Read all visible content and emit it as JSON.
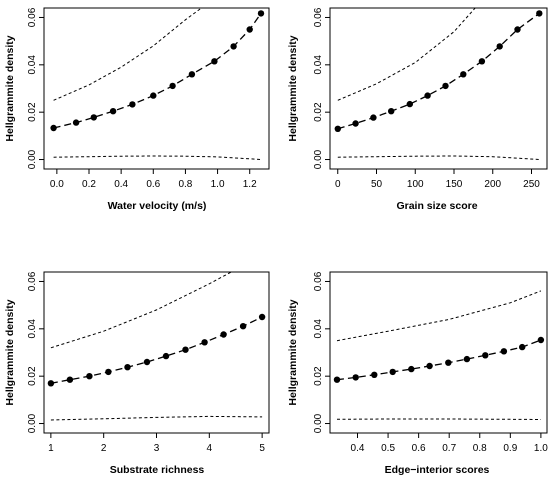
{
  "chart_data": [
    {
      "type": "line",
      "xlabel": "Water velocity (m/s)",
      "ylabel": "Hellgrammite density",
      "xlim": [
        -0.08,
        1.32
      ],
      "ylim": [
        -0.004,
        0.064
      ],
      "xticks": [
        0,
        0.2,
        0.4,
        0.6,
        0.8,
        1.0,
        1.2
      ],
      "xtick_labels": [
        "0.0",
        "0.2",
        "0.4",
        "0.6",
        "0.8",
        "1.0",
        "1.2"
      ],
      "yticks": [
        0,
        0.02,
        0.04,
        0.06
      ],
      "ytick_labels": [
        "0.00",
        "0.02",
        "0.04",
        "0.06"
      ],
      "grid": false,
      "series": [
        {
          "style": "fitted",
          "x": [
            -0.02,
            0.12,
            0.23,
            0.35,
            0.47,
            0.6,
            0.72,
            0.84,
            0.98,
            1.1,
            1.2,
            1.27
          ],
          "y": [
            0.0133,
            0.0156,
            0.0178,
            0.0204,
            0.0233,
            0.027,
            0.0311,
            0.036,
            0.0415,
            0.0478,
            0.0549,
            0.0617
          ]
        },
        {
          "style": "upper-bound",
          "x": [
            -0.02,
            0.2,
            0.4,
            0.6,
            0.8,
            0.92
          ],
          "y": [
            0.025,
            0.0315,
            0.039,
            0.048,
            0.059,
            0.065
          ]
        },
        {
          "style": "lower-bound",
          "x": [
            -0.02,
            0.2,
            0.4,
            0.6,
            0.8,
            1.0,
            1.27
          ],
          "y": [
            0.001,
            0.0012,
            0.0014,
            0.0015,
            0.0014,
            0.0011,
            0.0
          ]
        }
      ]
    },
    {
      "type": "line",
      "xlabel": "Grain size score",
      "ylabel": "Hellgrammite density",
      "xlim": [
        -10,
        270
      ],
      "ylim": [
        -0.004,
        0.064
      ],
      "xticks": [
        0,
        50,
        100,
        150,
        200,
        250
      ],
      "xtick_labels": [
        "0",
        "50",
        "100",
        "150",
        "200",
        "250"
      ],
      "yticks": [
        0,
        0.02,
        0.04,
        0.06
      ],
      "ytick_labels": [
        "0.00",
        "0.02",
        "0.04",
        "0.06"
      ],
      "grid": false,
      "series": [
        {
          "style": "fitted",
          "x": [
            0,
            23,
            46,
            69,
            93,
            116,
            139,
            162,
            186,
            209,
            232,
            260
          ],
          "y": [
            0.013,
            0.0152,
            0.0177,
            0.0204,
            0.0234,
            0.027,
            0.0311,
            0.036,
            0.0415,
            0.0478,
            0.0549,
            0.0617
          ]
        },
        {
          "style": "upper-bound",
          "x": [
            0,
            50,
            100,
            150,
            180
          ],
          "y": [
            0.025,
            0.032,
            0.041,
            0.054,
            0.065
          ]
        },
        {
          "style": "lower-bound",
          "x": [
            0,
            50,
            100,
            150,
            200,
            260
          ],
          "y": [
            0.001,
            0.0012,
            0.0014,
            0.0015,
            0.0012,
            0.0
          ]
        }
      ]
    },
    {
      "type": "line",
      "xlabel": "Substrate richness",
      "ylabel": "Hellgrammite density",
      "xlim": [
        0.87,
        5.13
      ],
      "ylim": [
        -0.004,
        0.064
      ],
      "xticks": [
        1,
        2,
        3,
        4,
        5
      ],
      "xtick_labels": [
        "1",
        "2",
        "3",
        "4",
        "5"
      ],
      "yticks": [
        0,
        0.02,
        0.04,
        0.06
      ],
      "ytick_labels": [
        "0.00",
        "0.02",
        "0.04",
        "0.06"
      ],
      "grid": false,
      "series": [
        {
          "style": "fitted",
          "x": [
            1,
            1.36,
            1.73,
            2.09,
            2.45,
            2.82,
            3.18,
            3.55,
            3.91,
            4.27,
            4.64,
            5
          ],
          "y": [
            0.017,
            0.0185,
            0.02,
            0.0218,
            0.0238,
            0.026,
            0.0285,
            0.0312,
            0.0343,
            0.0376,
            0.0411,
            0.045
          ]
        },
        {
          "style": "upper-bound",
          "x": [
            1,
            2,
            3,
            4,
            4.5
          ],
          "y": [
            0.032,
            0.039,
            0.048,
            0.059,
            0.065
          ]
        },
        {
          "style": "lower-bound",
          "x": [
            1,
            2,
            3,
            4,
            5
          ],
          "y": [
            0.0015,
            0.002,
            0.0026,
            0.003,
            0.0028
          ]
        }
      ]
    },
    {
      "type": "line",
      "xlabel": "Edge−interior scores",
      "ylabel": "Hellgrammite density",
      "xlim": [
        0.31,
        1.02
      ],
      "ylim": [
        -0.004,
        0.064
      ],
      "xticks": [
        0.4,
        0.5,
        0.6,
        0.7,
        0.8,
        0.9,
        1.0
      ],
      "xtick_labels": [
        "0.4",
        "0.5",
        "0.6",
        "0.7",
        "0.8",
        "0.9",
        "1.0"
      ],
      "yticks": [
        0,
        0.02,
        0.04,
        0.06
      ],
      "ytick_labels": [
        "0.00",
        "0.02",
        "0.04",
        "0.06"
      ],
      "grid": false,
      "series": [
        {
          "style": "fitted",
          "x": [
            0.333,
            0.394,
            0.455,
            0.515,
            0.576,
            0.636,
            0.697,
            0.758,
            0.818,
            0.879,
            0.939,
            1.0
          ],
          "y": [
            0.0185,
            0.0195,
            0.0206,
            0.0218,
            0.023,
            0.0243,
            0.0257,
            0.0272,
            0.0288,
            0.0305,
            0.0323,
            0.0353
          ]
        },
        {
          "style": "upper-bound",
          "x": [
            0.333,
            0.5,
            0.7,
            0.9,
            1.0
          ],
          "y": [
            0.035,
            0.039,
            0.044,
            0.051,
            0.056
          ]
        },
        {
          "style": "lower-bound",
          "x": [
            0.333,
            0.5,
            0.7,
            0.9,
            1.0
          ],
          "y": [
            0.0018,
            0.0019,
            0.0019,
            0.0018,
            0.0017
          ]
        }
      ]
    }
  ]
}
